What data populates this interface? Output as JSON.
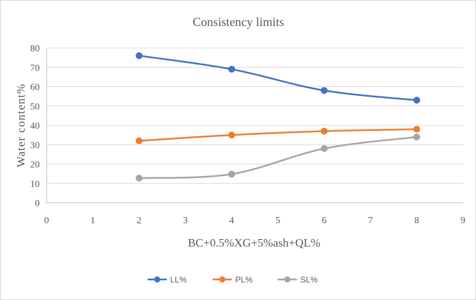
{
  "chart_data": {
    "type": "line",
    "title": "Consistency limits",
    "xlabel": "BC+0.5%XG+5%ash+QL%",
    "ylabel": "Water content%",
    "xlim": [
      0,
      9
    ],
    "ylim": [
      0,
      80
    ],
    "x_ticks": [
      0,
      1,
      2,
      3,
      4,
      5,
      6,
      7,
      8,
      9
    ],
    "y_ticks": [
      0,
      10,
      20,
      30,
      40,
      50,
      60,
      70,
      80
    ],
    "grid": "horizontal",
    "legend": "bottom-center",
    "smooth": true,
    "x": [
      2,
      4,
      6,
      8
    ],
    "series": [
      {
        "name": "LL%",
        "values": [
          76,
          69,
          58,
          53
        ],
        "color": "#4472c4"
      },
      {
        "name": "PL%",
        "values": [
          32,
          35,
          37,
          38
        ],
        "color": "#ed7d31"
      },
      {
        "name": "SL%",
        "values": [
          12.7,
          14.8,
          28,
          34
        ],
        "color": "#a5a5a5"
      }
    ]
  }
}
